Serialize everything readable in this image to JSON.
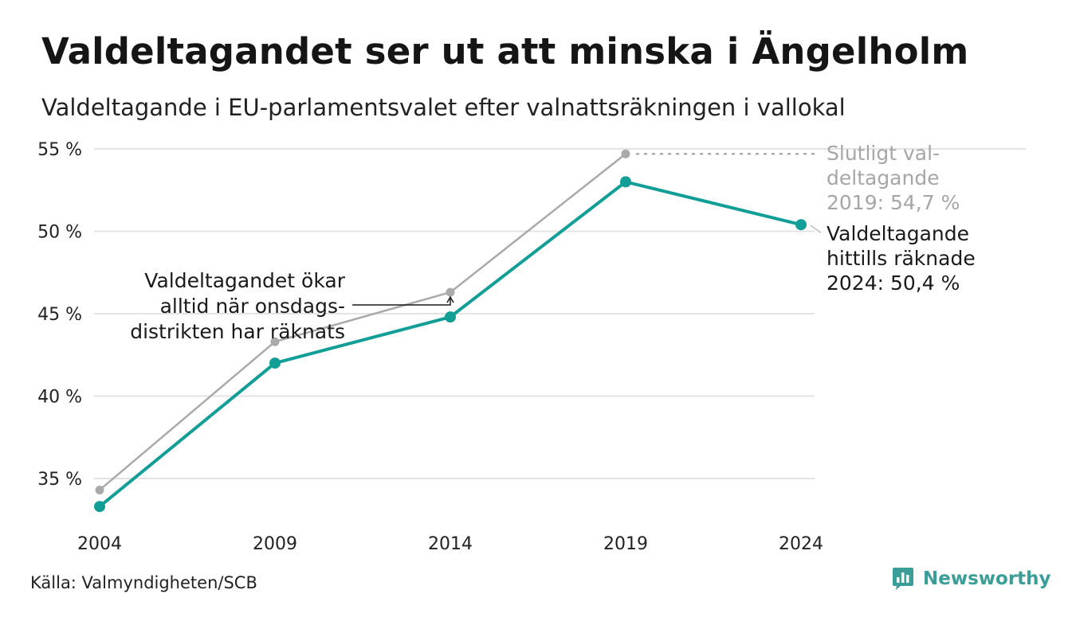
{
  "header": {
    "title": "Valdeltagandet ser ut att minska i Ängelholm",
    "subtitle": "Valdeltagande i EU-parlamentsvalet efter valnattsräkningen i vallokal"
  },
  "chart_data": {
    "type": "line",
    "title": "Valdeltagandet ser ut att minska i Ängelholm",
    "subtitle": "Valdeltagande i EU-parlamentsvalet efter valnattsräkningen i vallokal",
    "categories": [
      "2004",
      "2009",
      "2014",
      "2019",
      "2024"
    ],
    "series": [
      {
        "key": "final",
        "values": [
          34.3,
          43.3,
          46.3,
          54.7,
          null
        ],
        "color": "#aaaaaa"
      },
      {
        "key": "election_night",
        "values": [
          33.3,
          42.0,
          44.8,
          53.0,
          50.4
        ],
        "color": "#119e96"
      }
    ],
    "y_ticks": [
      35,
      40,
      45,
      50,
      55
    ],
    "y_tick_labels": [
      "35 %",
      "40 %",
      "45 %",
      "50 %",
      "55 %"
    ],
    "ylim": [
      33,
      55
    ],
    "grid": true,
    "legend": "none",
    "annotations": {
      "final_2019": [
        "Slutligt val-",
        "deltagande",
        "2019: 54,7 %"
      ],
      "counted_2024": [
        "Valdeltagande",
        "hittills räknade",
        "2024: 50,4 %"
      ],
      "wednesday": [
        "Valdeltagandet ökar",
        "alltid när onsdags-",
        "distrikten har räknats"
      ]
    }
  },
  "footer": {
    "source": "Källa: Valmyndigheten/SCB",
    "brand": "Newsworthy",
    "brand_color": "#3a9d98"
  }
}
